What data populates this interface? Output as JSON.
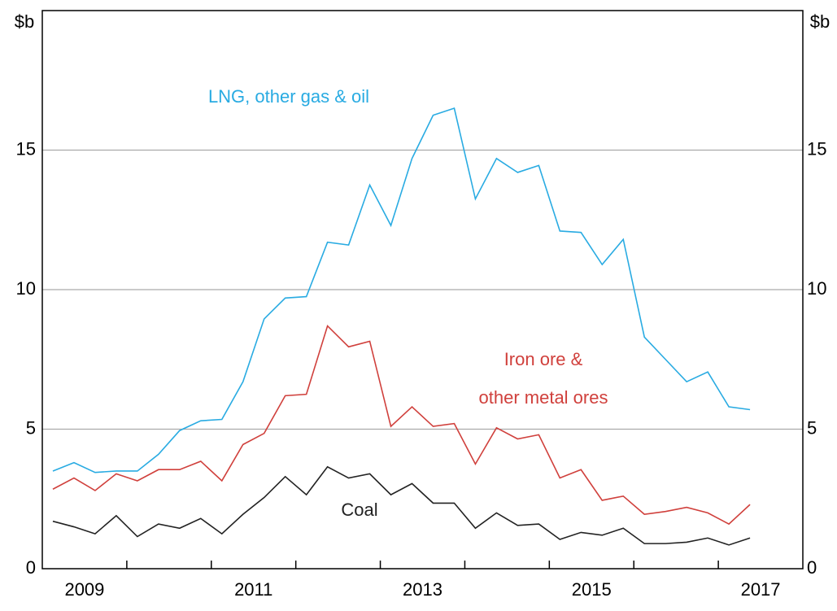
{
  "chart_data": {
    "type": "line",
    "y_unit_left": "$b",
    "y_unit_right": "$b",
    "annotations": [
      "LNG, other gas & oil",
      "Iron ore &",
      "other metal ores",
      "Coal"
    ],
    "x": [
      2009.125,
      2009.375,
      2009.625,
      2009.875,
      2010.125,
      2010.375,
      2010.625,
      2010.875,
      2011.125,
      2011.375,
      2011.625,
      2011.875,
      2012.125,
      2012.375,
      2012.625,
      2012.875,
      2013.125,
      2013.375,
      2013.625,
      2013.875,
      2014.125,
      2014.375,
      2014.625,
      2014.875,
      2015.125,
      2015.375,
      2015.625,
      2015.875,
      2016.125,
      2016.375,
      2016.625,
      2016.875,
      2017.125,
      2017.375
    ],
    "series": [
      {
        "name": "LNG, other gas & oil",
        "color": "#29abe2",
        "values": [
          3.5,
          3.8,
          3.45,
          3.5,
          3.5,
          4.1,
          4.95,
          5.3,
          5.35,
          6.7,
          8.95,
          9.7,
          9.75,
          11.7,
          11.6,
          13.75,
          12.3,
          14.7,
          16.25,
          16.5,
          13.25,
          14.7,
          14.2,
          14.45,
          12.1,
          12.05,
          10.9,
          11.8,
          8.3,
          7.5,
          6.7,
          7.05,
          5.8,
          5.7
        ]
      },
      {
        "name": "Iron ore & other metal ores",
        "color": "#d0403c",
        "values": [
          2.85,
          3.25,
          2.8,
          3.4,
          3.15,
          3.55,
          3.55,
          3.85,
          3.15,
          4.45,
          4.85,
          6.2,
          6.25,
          8.7,
          7.95,
          8.15,
          5.1,
          5.8,
          5.1,
          5.2,
          3.75,
          5.05,
          4.65,
          4.8,
          3.25,
          3.55,
          2.45,
          2.6,
          1.95,
          2.05,
          2.2,
          2.0,
          1.6,
          2.3
        ]
      },
      {
        "name": "Coal",
        "color": "#222222",
        "values": [
          1.7,
          1.5,
          1.25,
          1.9,
          1.15,
          1.6,
          1.45,
          1.8,
          1.25,
          1.95,
          2.55,
          3.3,
          2.65,
          3.65,
          3.25,
          3.4,
          2.65,
          3.05,
          2.35,
          2.35,
          1.45,
          2.0,
          1.55,
          1.6,
          1.05,
          1.3,
          1.2,
          1.45,
          0.9,
          0.9,
          0.95,
          1.1,
          0.85,
          1.1
        ]
      }
    ],
    "xlim": [
      2009,
      2018
    ],
    "xticks": [
      {
        "value": 2009.5,
        "label": "2009"
      },
      {
        "value": 2011.5,
        "label": "2011"
      },
      {
        "value": 2013.5,
        "label": "2013"
      },
      {
        "value": 2015.5,
        "label": "2015"
      },
      {
        "value": 2017.5,
        "label": "2017"
      }
    ],
    "xtick_marks": [
      2010,
      2011,
      2012,
      2013,
      2014,
      2015,
      2016,
      2017
    ],
    "ylim": [
      0,
      20
    ],
    "yticks": [
      0,
      5,
      10,
      15
    ],
    "grid": true
  }
}
